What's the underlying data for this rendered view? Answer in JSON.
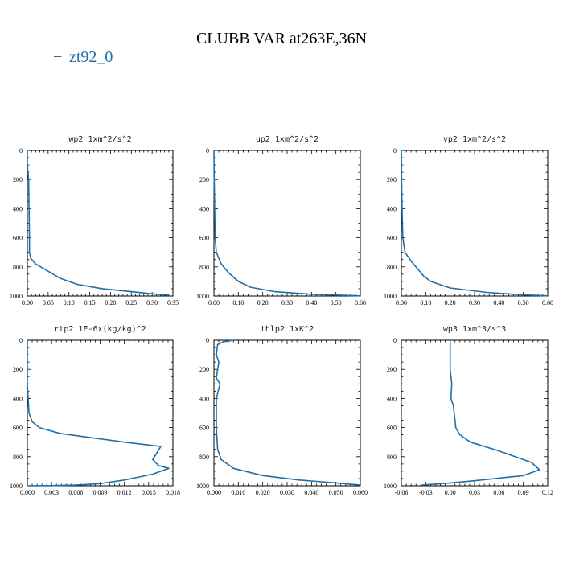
{
  "figure": {
    "title": "CLUBB VAR at263E,36N",
    "legend": {
      "label": "zt92_0",
      "marker": "−",
      "color": "#1f6ea8"
    }
  },
  "chart_data": [
    {
      "type": "line",
      "title": "wp2   1xm^2/s^2",
      "xlim": [
        0,
        0.35
      ],
      "xticks": [
        "0.00",
        "0.05",
        "0.10",
        "0.15",
        "0.20",
        "0.25",
        "0.30",
        "0.35"
      ],
      "ylim": [
        0,
        1000
      ],
      "yticks": [
        "0",
        "200",
        "400",
        "600",
        "800",
        "1000"
      ],
      "series": [
        {
          "name": "zt92_0",
          "x": [
            0.0,
            0.0,
            0.003,
            0.004,
            0.005,
            0.005,
            0.008,
            0.02,
            0.05,
            0.08,
            0.12,
            0.18,
            0.25,
            0.3,
            0.34
          ],
          "y": [
            0,
            100,
            200,
            400,
            600,
            700,
            740,
            780,
            830,
            880,
            920,
            950,
            970,
            985,
            995
          ]
        }
      ]
    },
    {
      "type": "line",
      "title": "up2   1xm^2/s^2",
      "xlim": [
        0,
        0.6
      ],
      "xticks": [
        "0.00",
        "0.10",
        "0.20",
        "0.30",
        "0.40",
        "0.50",
        "0.60"
      ],
      "ylim": [
        0,
        1000
      ],
      "yticks": [
        "0",
        "200",
        "400",
        "600",
        "800",
        "1000"
      ],
      "series": [
        {
          "name": "zt92_0",
          "x": [
            0.0,
            0.001,
            0.003,
            0.005,
            0.01,
            0.03,
            0.06,
            0.1,
            0.15,
            0.25,
            0.4,
            0.55,
            0.6
          ],
          "y": [
            0,
            200,
            400,
            600,
            700,
            780,
            840,
            900,
            940,
            970,
            988,
            996,
            999
          ]
        }
      ]
    },
    {
      "type": "line",
      "title": "vp2   1xm^2/s^2",
      "xlim": [
        0,
        0.6
      ],
      "xticks": [
        "0.00",
        "0.10",
        "0.20",
        "0.30",
        "0.40",
        "0.50",
        "0.60"
      ],
      "ylim": [
        0,
        1000
      ],
      "yticks": [
        "0",
        "200",
        "400",
        "600",
        "800",
        "1000"
      ],
      "series": [
        {
          "name": "zt92_0",
          "x": [
            0.0,
            0.001,
            0.003,
            0.006,
            0.015,
            0.04,
            0.07,
            0.09,
            0.12,
            0.2,
            0.35,
            0.5,
            0.6
          ],
          "y": [
            0,
            200,
            400,
            600,
            700,
            760,
            820,
            860,
            900,
            945,
            975,
            992,
            999
          ]
        }
      ]
    },
    {
      "type": "line",
      "title": "rtp2   1E-6x(kg/kg)^2",
      "xlim": [
        0,
        0.018
      ],
      "xticks": [
        "0.000",
        "0.003",
        "0.006",
        "0.009",
        "0.012",
        "0.015",
        "0.018"
      ],
      "ylim": [
        0,
        1000
      ],
      "yticks": [
        "0",
        "200",
        "400",
        "600",
        "800",
        "1000"
      ],
      "series": [
        {
          "name": "zt92_0",
          "x": [
            0.0,
            0.0,
            0.0002,
            0.0006,
            0.0015,
            0.004,
            0.008,
            0.012,
            0.0165,
            0.0155,
            0.0162,
            0.0175,
            0.0155,
            0.012,
            0.009,
            0.006,
            0.003,
            0.0
          ],
          "y": [
            0,
            300,
            500,
            560,
            600,
            640,
            670,
            700,
            730,
            820,
            860,
            880,
            920,
            960,
            985,
            995,
            999,
            1000
          ]
        }
      ]
    },
    {
      "type": "line",
      "title": "thlp2   1xK^2",
      "xlim": [
        0,
        0.06
      ],
      "xticks": [
        "0.000",
        "0.010",
        "0.020",
        "0.030",
        "0.040",
        "0.050",
        "0.060"
      ],
      "ylim": [
        0,
        1000
      ],
      "yticks": [
        "0",
        "200",
        "400",
        "600",
        "800",
        "1000"
      ],
      "series": [
        {
          "name": "zt92_0",
          "x": [
            0.008,
            0.004,
            0.0015,
            0.001,
            0.002,
            0.0015,
            0.001,
            0.0025,
            0.001,
            0.001,
            0.0015,
            0.003,
            0.008,
            0.02,
            0.035,
            0.05,
            0.06
          ],
          "y": [
            0,
            10,
            30,
            100,
            150,
            200,
            260,
            300,
            400,
            600,
            750,
            820,
            880,
            930,
            960,
            980,
            995
          ]
        }
      ]
    },
    {
      "type": "line",
      "title": "wp3   1xm^3/s^3",
      "xlim": [
        -0.06,
        0.12
      ],
      "xticks": [
        "-0.06",
        "-0.03",
        "0.00",
        "0.03",
        "0.06",
        "0.09",
        "0.12"
      ],
      "ylim": [
        0,
        1000
      ],
      "yticks": [
        "0",
        "200",
        "400",
        "600",
        "800",
        "1000"
      ],
      "series": [
        {
          "name": "zt92_0",
          "x": [
            0.0,
            0.0,
            0.002,
            0.001,
            0.004,
            0.005,
            0.007,
            0.012,
            0.025,
            0.06,
            0.1,
            0.11,
            0.09,
            0.03,
            -0.01,
            -0.035
          ],
          "y": [
            0,
            200,
            300,
            400,
            450,
            500,
            600,
            650,
            700,
            760,
            840,
            890,
            930,
            965,
            985,
            995
          ]
        }
      ]
    }
  ]
}
